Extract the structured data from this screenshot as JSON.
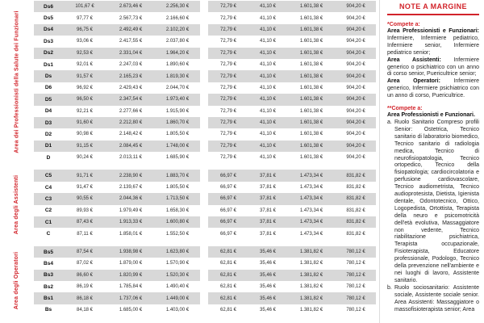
{
  "page": {
    "accent_red": "#d2232a",
    "row_shade": "#d8d8d8",
    "background": "#ffffff"
  },
  "table": {
    "groups": [
      {
        "label": "Area dei Professionisti della Salute dei Funzionari",
        "shared_values": [
          "72,79 €",
          "41,10 €",
          "1.601,38 €",
          "904,20 €"
        ],
        "rows": [
          {
            "code": "Ds6",
            "values": [
              "101,67 €",
              "2.673,46 €",
              "2.256,30 €"
            ]
          },
          {
            "code": "Ds5",
            "values": [
              "97,77 €",
              "2.567,73 €",
              "2.166,60 €"
            ]
          },
          {
            "code": "Ds4",
            "values": [
              "96,75 €",
              "2.492,49 €",
              "2.102,20 €"
            ]
          },
          {
            "code": "Ds3",
            "values": [
              "93,06 €",
              "2.417,55 €",
              "2.037,80 €"
            ]
          },
          {
            "code": "Ds2",
            "values": [
              "92,53 €",
              "2.331,04 €",
              "1.964,20 €"
            ]
          },
          {
            "code": "Ds1",
            "values": [
              "92,01 €",
              "2.247,03 €",
              "1.890,60 €"
            ]
          },
          {
            "code": "Ds",
            "values": [
              "91,57 €",
              "2.165,23 €",
              "1.819,30 €"
            ]
          },
          {
            "code": "D6",
            "values": [
              "96,92 €",
              "2.429,43 €",
              "2.044,70 €"
            ]
          },
          {
            "code": "D5",
            "values": [
              "96,50 €",
              "2.347,54 €",
              "1.973,40 €"
            ]
          },
          {
            "code": "D4",
            "values": [
              "92,21 €",
              "2.277,66 €",
              "1.915,90 €"
            ]
          },
          {
            "code": "D3",
            "values": [
              "91,60 €",
              "2.212,80 €",
              "1.860,70 €"
            ]
          },
          {
            "code": "D2",
            "values": [
              "90,98 €",
              "2.148,42 €",
              "1.805,50 €"
            ]
          },
          {
            "code": "D1",
            "values": [
              "91,15 €",
              "2.084,45 €",
              "1.748,00 €"
            ]
          },
          {
            "code": "D",
            "values": [
              "90,24 €",
              "2.013,11 €",
              "1.685,90 €"
            ]
          }
        ]
      },
      {
        "label": "Area degli Assistenti",
        "shared_values": [
          "66,97 €",
          "37,81 €",
          "1.473,34 €",
          "831,82 €"
        ],
        "rows": [
          {
            "code": "C5",
            "values": [
              "91,71 €",
              "2.238,90 €",
              "1.883,70 €"
            ]
          },
          {
            "code": "C4",
            "values": [
              "91,47 €",
              "2.139,67 €",
              "1.805,50 €"
            ]
          },
          {
            "code": "C3",
            "values": [
              "90,55 €",
              "2.044,36 €",
              "1.713,50 €"
            ]
          },
          {
            "code": "C2",
            "values": [
              "89,93 €",
              "1.979,49 €",
              "1.658,30 €"
            ]
          },
          {
            "code": "C1",
            "values": [
              "87,43 €",
              "1.913,33 €",
              "1.600,80 €"
            ]
          },
          {
            "code": "C",
            "values": [
              "87,11 €",
              "1.858,01 €",
              "1.552,50 €"
            ]
          }
        ]
      },
      {
        "label": "Area degli Operatori",
        "shared_values": [
          "62,81 €",
          "35,46 €",
          "1.381,82 €",
          "780,12 €"
        ],
        "rows": [
          {
            "code": "Bs5",
            "values": [
              "87,54 €",
              "1.938,98 €",
              "1.623,80 €"
            ]
          },
          {
            "code": "Bs4",
            "values": [
              "87,02 €",
              "1.879,00 €",
              "1.570,90 €"
            ]
          },
          {
            "code": "Bs3",
            "values": [
              "86,60 €",
              "1.820,99 €",
              "1.520,30 €"
            ]
          },
          {
            "code": "Bs2",
            "values": [
              "86,19 €",
              "1.785,84 €",
              "1.490,40 €"
            ]
          },
          {
            "code": "Bs1",
            "values": [
              "86,18 €",
              "1.737,06 €",
              "1.449,00 €"
            ]
          },
          {
            "code": "Bs",
            "values": [
              "84,18 €",
              "1.685,00 €",
              "1.403,00 €"
            ]
          }
        ]
      }
    ]
  },
  "notes": {
    "title": "NOTE A MARGINE",
    "note1": {
      "lead": "*Compete a:",
      "segments": [
        {
          "bold": "Area Professionisti e Funzionari:",
          "text": " Infermiere, Infermiere pediatrico, Infermiere senior, Infermiere pediatrico senior;"
        },
        {
          "bold": "Area Assistenti:",
          "text": " Infermiere generico o psichiatrico con un anno di corso senior, Puericultrice senior;"
        },
        {
          "bold": "Area Operatori:",
          "text": " Infermiere generico, Infermiere psichiatrico con un anno di corso, Puericultrice."
        }
      ]
    },
    "note2": {
      "lead": "**Compete a:",
      "subtitle": "Area Professionisti e Funzionari.",
      "items": [
        {
          "marker": "a.",
          "text": "Ruolo Sanitario Compreso profili Senior: Ostetrica, Tecnico sanitario di laboratorio biomedico, Tecnico sanitario di radiologia medica, Tecnico di neurofisiopatologia, Tecnico ortopedico, Tecnico della fisiopatologia; cardiocircolatoria e perfusione cardiovascolare, Tecnico audiometrista, Tecnico audioprotesista, Dietista, Igienista dentale, Odontotecnico, Ottico, Logopedista, Ortottista, Terapista della neuro e psicomotricità dell'età evolutiva, Massaggiatore non vedente, Tecnico riabilitazione psichiatrica, Terapista occupazionale, Fisioterapista, Educatore professionale, Podologo, Tecnico della prevenzione nell'ambiente e nei luoghi di lavoro, Assistente sanitario."
        },
        {
          "marker": "b.",
          "text": "Ruolo sociosanitario: Assistente sociale, Assistente sociale senior. Area Assistenti: Massaggiatore o massofisioterapista senior; Area"
        }
      ]
    }
  }
}
